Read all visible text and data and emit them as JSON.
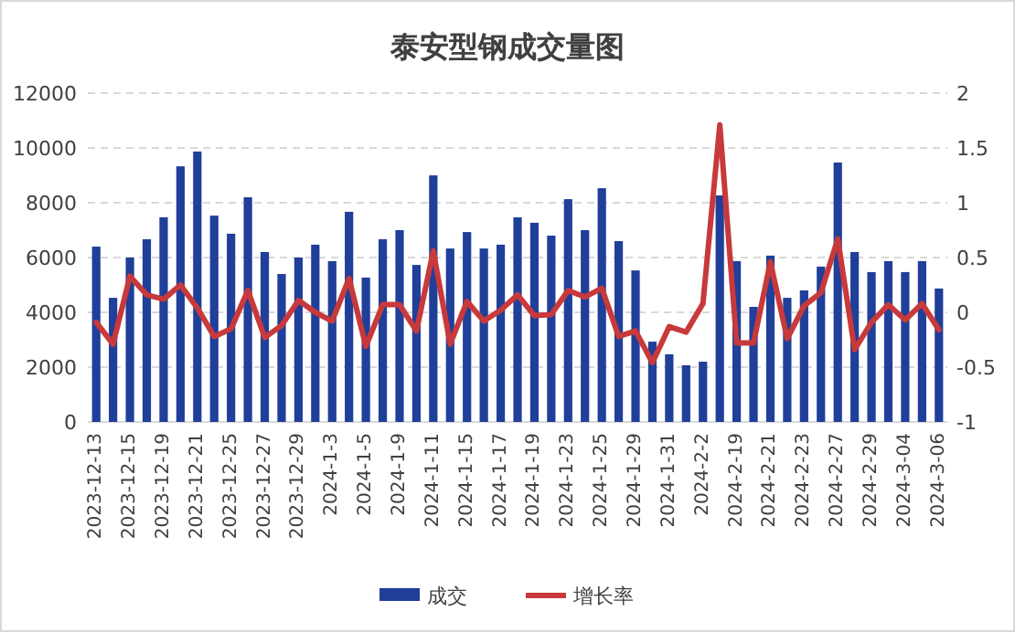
{
  "chart_data": {
    "type": "bar",
    "title": "泰安型钢成交量图",
    "categories": [
      "2023-12-13",
      null,
      "2023-12-15",
      null,
      "2023-12-19",
      null,
      "2023-12-21",
      null,
      "2023-12-25",
      null,
      "2023-12-27",
      null,
      "2023-12-29",
      null,
      "2024-1-3",
      null,
      "2024-1-5",
      null,
      "2024-1-9",
      null,
      "2024-1-11",
      null,
      "2024-1-15",
      null,
      "2024-1-17",
      null,
      "2024-1-19",
      null,
      "2024-1-23",
      null,
      "2024-1-25",
      null,
      "2024-1-29",
      null,
      "2024-1-31",
      null,
      "2024-2-2",
      null,
      "2024-2-19",
      null,
      "2024-2-21",
      null,
      "2024-2-23",
      null,
      "2024-2-27",
      null,
      "2024-2-29",
      null,
      "2024-3-04",
      null,
      "2024-3-06"
    ],
    "series": [
      {
        "name": "成交",
        "color": "#1f3f99",
        "values": [
          6400,
          4530,
          6000,
          6670,
          7470,
          9330,
          9870,
          7530,
          6870,
          8200,
          6200,
          5400,
          6000,
          6470,
          5870,
          7670,
          5270,
          6670,
          7000,
          5730,
          9000,
          6330,
          6930,
          6330,
          6470,
          7470,
          7270,
          6800,
          8130,
          7000,
          8530,
          6600,
          5530,
          2930,
          2470,
          2070,
          2200,
          8270,
          5870,
          4200,
          6070,
          4530,
          4800,
          5670,
          9470,
          6200,
          5470,
          5870,
          5470,
          5870,
          4870
        ]
      },
      {
        "name": "增长率",
        "type": "line",
        "axis": "y2",
        "color": "#c8393b",
        "values": [
          -0.09,
          -0.29,
          0.33,
          0.16,
          0.12,
          0.25,
          0.04,
          -0.22,
          -0.15,
          0.2,
          -0.23,
          -0.12,
          0.11,
          0.0,
          -0.08,
          0.31,
          -0.31,
          0.07,
          0.07,
          -0.17,
          0.56,
          -0.29,
          0.1,
          -0.08,
          0.02,
          0.16,
          -0.03,
          -0.02,
          0.2,
          0.14,
          0.22,
          -0.22,
          -0.17,
          -0.46,
          -0.13,
          -0.18,
          0.08,
          1.71,
          -0.28,
          -0.28,
          0.46,
          -0.24,
          0.06,
          0.18,
          0.67,
          -0.34,
          -0.09,
          0.07,
          -0.07,
          0.08,
          -0.16
        ]
      }
    ],
    "ylim": [
      0,
      12000
    ],
    "yticks": [
      0,
      2000,
      4000,
      6000,
      8000,
      10000,
      12000
    ],
    "y2lim": [
      -1,
      2
    ],
    "y2ticks": [
      -1,
      -0.5,
      0,
      0.5,
      1,
      1.5,
      2
    ],
    "grid": "y",
    "legend": "bottom"
  }
}
